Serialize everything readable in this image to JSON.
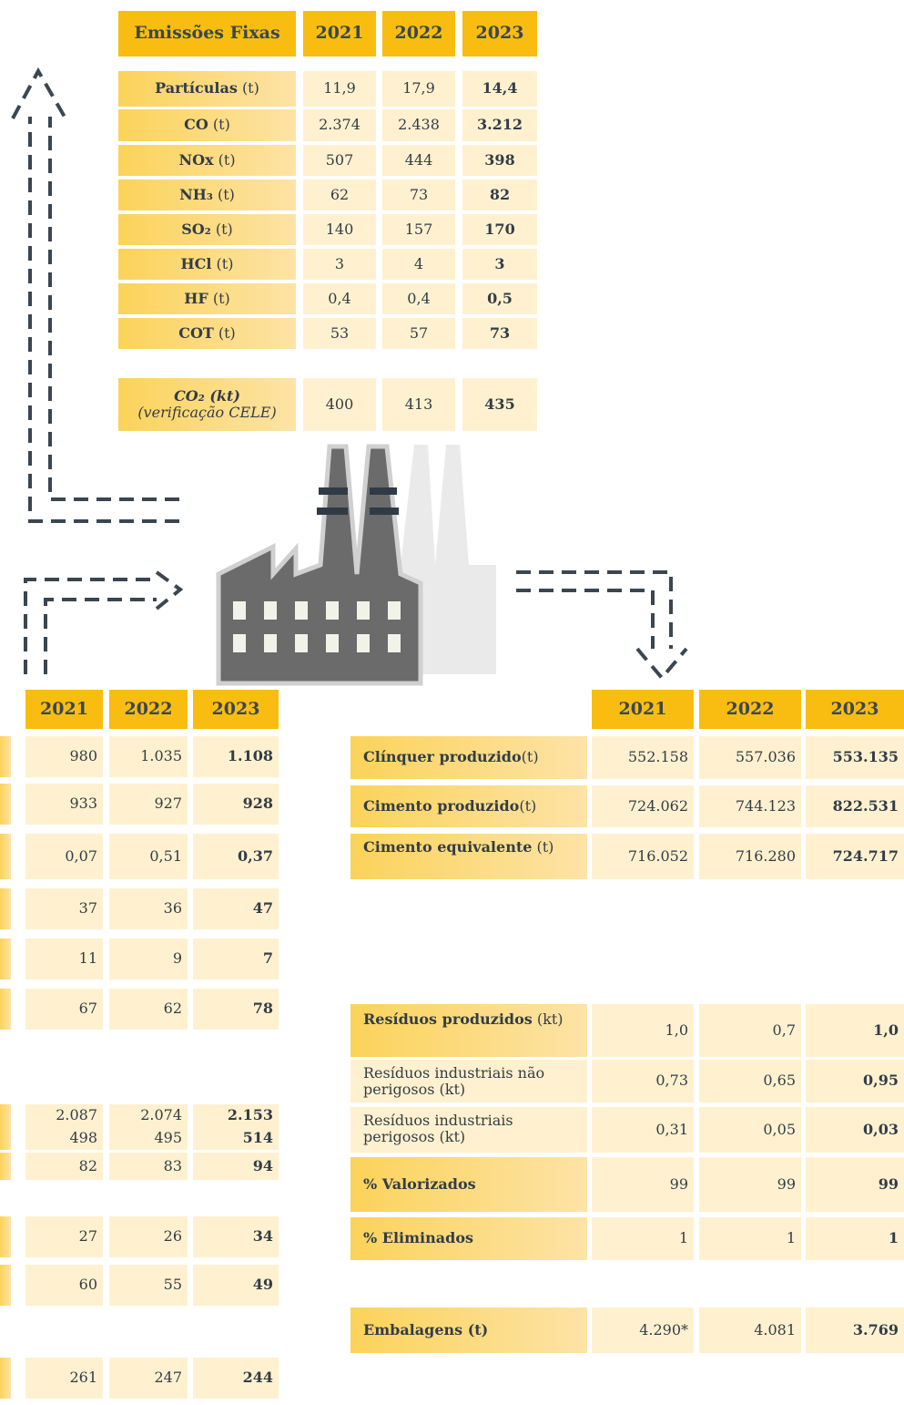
{
  "emissions_table": {
    "header": [
      "Emissões Fixas",
      "2021",
      "2022",
      "2023"
    ],
    "rows": [
      {
        "label": "Partículas",
        "unit": "(t)",
        "values": [
          "11,9",
          "17,9",
          "14,4"
        ]
      },
      {
        "label": "CO",
        "unit": "(t)",
        "values": [
          "2.374",
          "2.438",
          "3.212"
        ]
      },
      {
        "label": "NOx",
        "unit": "(t)",
        "values": [
          "507",
          "444",
          "398"
        ]
      },
      {
        "label": "NH₃",
        "unit": "(t)",
        "values": [
          "62",
          "73",
          "82"
        ]
      },
      {
        "label": "SO₂",
        "unit": "(t)",
        "values": [
          "140",
          "157",
          "170"
        ]
      },
      {
        "label": "HCl",
        "unit": "(t)",
        "values": [
          "3",
          "4",
          "3"
        ]
      },
      {
        "label": "HF",
        "unit": "(t)",
        "values": [
          "0,4",
          "0,4",
          "0,5"
        ]
      },
      {
        "label": "COT",
        "unit": "(t)",
        "values": [
          "53",
          "57",
          "73"
        ]
      }
    ],
    "co2_row": {
      "label": "CO₂ (kt)",
      "note": "(verificação CELE)",
      "values": [
        "400",
        "413",
        "435"
      ]
    }
  },
  "left_table": {
    "header": [
      "2021",
      "2022",
      "2023"
    ],
    "rows": [
      [
        "980",
        "1.035",
        "1.108"
      ],
      [
        "933",
        "927",
        "928"
      ],
      [
        "0,07",
        "0,51",
        "0,37"
      ],
      [
        "37",
        "36",
        "47"
      ],
      [
        "11",
        "9",
        "7"
      ],
      [
        "67",
        "62",
        "78"
      ],
      [
        "2.087",
        "2.074",
        "2.153"
      ],
      [
        "498",
        "495",
        "514"
      ],
      [
        "82",
        "83",
        "94"
      ],
      [
        "27",
        "26",
        "34"
      ],
      [
        "60",
        "55",
        "49"
      ],
      [
        "261",
        "247",
        "244"
      ]
    ]
  },
  "right_table": {
    "header": [
      "2021",
      "2022",
      "2023"
    ],
    "rows": [
      {
        "label": "Clínquer produzido",
        "unit": "(t)",
        "values": [
          "552.158",
          "557.036",
          "553.135"
        ]
      },
      {
        "label": "Cimento produzido",
        "unit": "(t)",
        "values": [
          "724.062",
          "744.123",
          "822.531"
        ]
      },
      {
        "label": "Cimento equivalente",
        "unit": "(t)",
        "values": [
          "716.052",
          "716.280",
          "724.717"
        ]
      },
      {
        "label": "Resíduos produzidos",
        "unit": "(kt)",
        "values": [
          "1,0",
          "0,7",
          "1,0"
        ]
      },
      {
        "label": "Resíduos industriais não perigosos",
        "unit": "(kt)",
        "values": [
          "0,73",
          "0,65",
          "0,95"
        ]
      },
      {
        "label": "Resíduos industriais perigosos",
        "unit": "(kt)",
        "values": [
          "0,31",
          "0,05",
          "0,03"
        ]
      },
      {
        "label": "% Valorizados",
        "values": [
          "99",
          "99",
          "99"
        ]
      },
      {
        "label": "% Eliminados",
        "values": [
          "1",
          "1",
          "1"
        ]
      },
      {
        "label": "Embalagens (t)",
        "values": [
          "4.290*",
          "4.081",
          "3.769"
        ]
      }
    ]
  }
}
